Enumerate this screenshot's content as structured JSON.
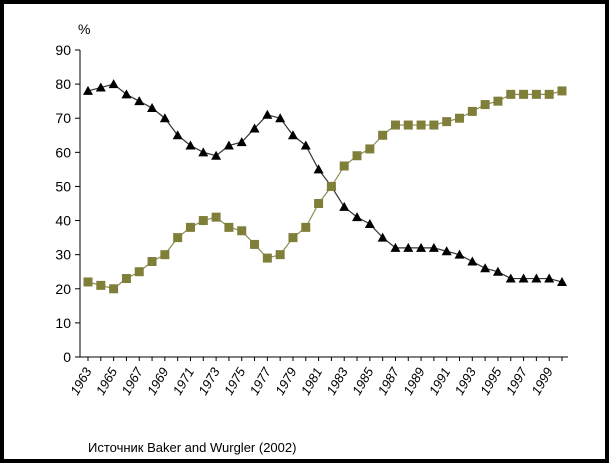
{
  "chart_data": {
    "type": "line",
    "y_label": "%",
    "source": "Источник Baker and Wurgler (2002)",
    "categories": [
      "1963",
      null,
      "1965",
      null,
      "1967",
      null,
      "1969",
      null,
      "1971",
      null,
      "1973",
      null,
      "1975",
      null,
      "1977",
      null,
      "1979",
      null,
      "1981",
      null,
      "1983",
      null,
      "1985",
      null,
      "1987",
      null,
      "1989",
      null,
      "1991",
      null,
      "1993",
      null,
      "1995",
      null,
      "1997",
      null,
      "1999",
      null
    ],
    "series": [
      {
        "color": "#000000",
        "marker": "triangle",
        "values": [
          78,
          79,
          80,
          77,
          75,
          73,
          70,
          65,
          62,
          60,
          59,
          62,
          63,
          67,
          71,
          70,
          65,
          62,
          55,
          50,
          44,
          41,
          39,
          35,
          32,
          32,
          32,
          32,
          31,
          30,
          28,
          26,
          25,
          23,
          23,
          23,
          23,
          22
        ]
      },
      {
        "color": "#7f7f3a",
        "marker": "square",
        "values": [
          22,
          21,
          20,
          23,
          25,
          28,
          30,
          35,
          38,
          40,
          41,
          38,
          37,
          33,
          29,
          30,
          35,
          38,
          45,
          50,
          56,
          59,
          61,
          65,
          68,
          68,
          68,
          68,
          69,
          70,
          72,
          74,
          75,
          77,
          77,
          77,
          77,
          78
        ]
      }
    ],
    "ylim": [
      0,
      90
    ],
    "yticks": [
      0,
      10,
      20,
      30,
      40,
      50,
      60,
      70,
      80,
      90
    ],
    "grid": false
  }
}
